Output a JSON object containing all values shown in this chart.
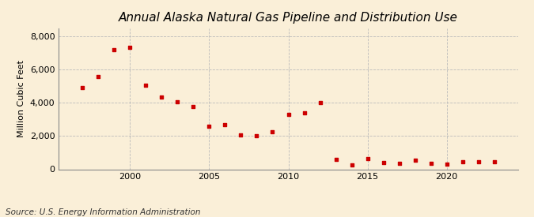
{
  "title": "Annual Alaska Natural Gas Pipeline and Distribution Use",
  "ylabel": "Million Cubic Feet",
  "source": "Source: U.S. Energy Information Administration",
  "background_color": "#faefd8",
  "marker_color": "#cc0000",
  "years": [
    1997,
    1998,
    1999,
    2000,
    2001,
    2002,
    2003,
    2004,
    2005,
    2006,
    2007,
    2008,
    2009,
    2010,
    2011,
    2012,
    2013,
    2014,
    2015,
    2016,
    2017,
    2018,
    2019,
    2020,
    2021,
    2022,
    2023
  ],
  "values": [
    4900,
    5600,
    7200,
    7350,
    5050,
    4350,
    4050,
    3800,
    2580,
    2700,
    2050,
    2020,
    2250,
    3300,
    3380,
    4000,
    580,
    280,
    620,
    420,
    350,
    550,
    370,
    320,
    450,
    450,
    430
  ],
  "xlim": [
    1995.5,
    2024.5
  ],
  "ylim": [
    0,
    8500
  ],
  "yticks": [
    0,
    2000,
    4000,
    6000,
    8000
  ],
  "xticks": [
    2000,
    2005,
    2010,
    2015,
    2020
  ],
  "grid_color": "#bbbbbb",
  "title_fontsize": 11,
  "label_fontsize": 8,
  "tick_fontsize": 8,
  "source_fontsize": 7.5
}
